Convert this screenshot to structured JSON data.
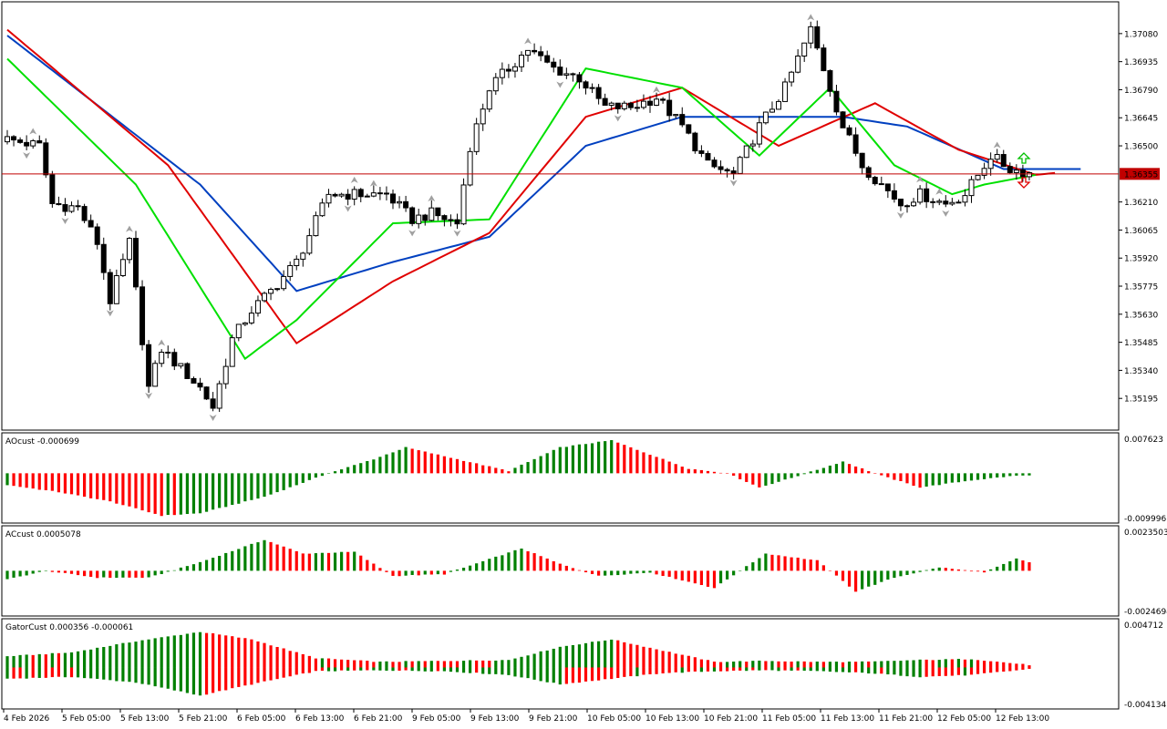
{
  "colors": {
    "bull": "#008000",
    "bear": "#ff0000",
    "jaw": "#0040c0",
    "teeth": "#e00000",
    "lips": "#00e000",
    "price_line": "#c00000",
    "price_tag_bg": "#c00000",
    "fractal": "#a0a0a0"
  },
  "main": {
    "ylim": [
      1.3505,
      1.3723
    ],
    "y_ticks": [
      "1.37080",
      "1.36935",
      "1.36790",
      "1.36645",
      "1.36500",
      "1.36355",
      "1.36210",
      "1.36065",
      "1.35920",
      "1.35775",
      "1.35630",
      "1.35485",
      "1.35340",
      "1.35195"
    ],
    "current_price": "1.36355"
  },
  "panels": {
    "ao": {
      "title": "AOcust -0.000699",
      "max_label": "0.007623",
      "min_label": "-0.009996"
    },
    "ac": {
      "title": "ACcust 0.0005078",
      "max_label": "0.0023503",
      "min_label": "-0.0024694"
    },
    "gator": {
      "title": "GatorCust 0.000356 -0.000061",
      "max_label": "0.004712",
      "min_label": "-0.004134"
    }
  },
  "x_labels": [
    "4 Feb 2026",
    "5 Feb 05:00",
    "5 Feb 13:00",
    "5 Feb 21:00",
    "6 Feb 05:00",
    "6 Feb 13:00",
    "6 Feb 21:00",
    "9 Feb 05:00",
    "9 Feb 13:00",
    "9 Feb 21:00",
    "10 Feb 05:00",
    "10 Feb 13:00",
    "10 Feb 21:00",
    "11 Feb 05:00",
    "11 Feb 13:00",
    "11 Feb 21:00",
    "12 Feb 05:00",
    "12 Feb 13:00"
  ],
  "chart_data": [
    {
      "type": "candlestick",
      "title": "",
      "bar_count": 160,
      "close_anchors": [
        [
          0,
          1.3654
        ],
        [
          6,
          1.365
        ],
        [
          8,
          1.362
        ],
        [
          12,
          1.3618
        ],
        [
          15,
          1.36
        ],
        [
          17,
          1.357
        ],
        [
          20,
          1.36
        ],
        [
          23,
          1.3525
        ],
        [
          25,
          1.3545
        ],
        [
          28,
          1.3535
        ],
        [
          31,
          1.3525
        ],
        [
          33,
          1.3515
        ],
        [
          36,
          1.355
        ],
        [
          39,
          1.3565
        ],
        [
          42,
          1.3575
        ],
        [
          46,
          1.359
        ],
        [
          51,
          1.3625
        ],
        [
          56,
          1.3625
        ],
        [
          60,
          1.3625
        ],
        [
          64,
          1.3612
        ],
        [
          67,
          1.3615
        ],
        [
          71,
          1.361
        ],
        [
          73,
          1.365
        ],
        [
          76,
          1.368
        ],
        [
          79,
          1.369
        ],
        [
          82,
          1.37
        ],
        [
          86,
          1.369
        ],
        [
          90,
          1.3685
        ],
        [
          94,
          1.367
        ],
        [
          98,
          1.367
        ],
        [
          102,
          1.3675
        ],
        [
          106,
          1.366
        ],
        [
          110,
          1.364
        ],
        [
          114,
          1.3635
        ],
        [
          118,
          1.366
        ],
        [
          122,
          1.368
        ],
        [
          126,
          1.371
        ],
        [
          128,
          1.369
        ],
        [
          131,
          1.366
        ],
        [
          134,
          1.364
        ],
        [
          137,
          1.363
        ],
        [
          140,
          1.362
        ],
        [
          143,
          1.3625
        ],
        [
          147,
          1.362
        ],
        [
          150,
          1.3625
        ],
        [
          154,
          1.3645
        ],
        [
          157,
          1.3638
        ],
        [
          160,
          1.3636
        ]
      ],
      "alligator": {
        "jaw_anchors": [
          [
            0,
            1.3707
          ],
          [
            30,
            1.363
          ],
          [
            45,
            1.3575
          ],
          [
            60,
            1.359
          ],
          [
            75,
            1.3603
          ],
          [
            90,
            1.365
          ],
          [
            105,
            1.3665
          ],
          [
            120,
            1.3665
          ],
          [
            130,
            1.3665
          ],
          [
            140,
            1.366
          ],
          [
            155,
            1.3638
          ],
          [
            167,
            1.3638
          ]
        ],
        "teeth_anchors": [
          [
            0,
            1.371
          ],
          [
            25,
            1.364
          ],
          [
            45,
            1.3548
          ],
          [
            60,
            1.358
          ],
          [
            75,
            1.3605
          ],
          [
            90,
            1.3665
          ],
          [
            105,
            1.368
          ],
          [
            120,
            1.365
          ],
          [
            135,
            1.3672
          ],
          [
            148,
            1.3648
          ],
          [
            160,
            1.3635
          ],
          [
            163,
            1.3636
          ]
        ],
        "lips_anchors": [
          [
            0,
            1.3695
          ],
          [
            20,
            1.363
          ],
          [
            37,
            1.354
          ],
          [
            45,
            1.356
          ],
          [
            60,
            1.361
          ],
          [
            75,
            1.3612
          ],
          [
            90,
            1.369
          ],
          [
            105,
            1.368
          ],
          [
            117,
            1.3645
          ],
          [
            128,
            1.368
          ],
          [
            138,
            1.364
          ],
          [
            147,
            1.3625
          ],
          [
            152,
            1.363
          ],
          [
            160,
            1.3635
          ]
        ]
      }
    },
    {
      "type": "histogram",
      "name": "AOcust",
      "ylim": [
        -0.009996,
        0.007623
      ],
      "anchors": [
        [
          0,
          -0.0025
        ],
        [
          8,
          -0.004
        ],
        [
          16,
          -0.006
        ],
        [
          24,
          -0.009
        ],
        [
          30,
          -0.0085
        ],
        [
          40,
          -0.005
        ],
        [
          50,
          0.0
        ],
        [
          57,
          0.003
        ],
        [
          62,
          0.0055
        ],
        [
          70,
          0.003
        ],
        [
          78,
          0.0005
        ],
        [
          86,
          0.0055
        ],
        [
          94,
          0.007
        ],
        [
          100,
          0.004
        ],
        [
          106,
          0.001
        ],
        [
          112,
          0.0
        ],
        [
          117,
          -0.003
        ],
        [
          122,
          -0.001
        ],
        [
          130,
          0.0025
        ],
        [
          136,
          -0.0005
        ],
        [
          142,
          -0.003
        ],
        [
          150,
          -0.0015
        ],
        [
          157,
          -0.0005
        ],
        [
          160,
          -0.0005
        ]
      ]
    },
    {
      "type": "histogram",
      "name": "ACcust",
      "ylim": [
        -0.0024694,
        0.0023503
      ],
      "anchors": [
        [
          0,
          -0.0005
        ],
        [
          6,
          0.0
        ],
        [
          14,
          -0.0004
        ],
        [
          22,
          -0.0004
        ],
        [
          30,
          0.0005
        ],
        [
          40,
          0.0018
        ],
        [
          46,
          0.001
        ],
        [
          54,
          0.0011
        ],
        [
          60,
          -0.0003
        ],
        [
          68,
          -0.0002
        ],
        [
          76,
          0.0008
        ],
        [
          80,
          0.0013
        ],
        [
          86,
          0.0004
        ],
        [
          92,
          -0.0003
        ],
        [
          100,
          -0.0001
        ],
        [
          110,
          -0.001
        ],
        [
          118,
          0.001
        ],
        [
          126,
          0.0006
        ],
        [
          132,
          -0.0012
        ],
        [
          138,
          -0.0004
        ],
        [
          145,
          0.0002
        ],
        [
          152,
          -0.0001
        ],
        [
          157,
          0.0007
        ],
        [
          160,
          0.0004
        ]
      ]
    },
    {
      "type": "histogram",
      "name": "GatorCust",
      "ylim": [
        -0.004134,
        0.004712
      ],
      "upper_anchors": [
        [
          0,
          0.0012
        ],
        [
          10,
          0.0016
        ],
        [
          20,
          0.0028
        ],
        [
          30,
          0.0038
        ],
        [
          38,
          0.003
        ],
        [
          48,
          0.001
        ],
        [
          58,
          0.0006
        ],
        [
          68,
          0.0007
        ],
        [
          78,
          0.0008
        ],
        [
          86,
          0.0022
        ],
        [
          94,
          0.003
        ],
        [
          102,
          0.0018
        ],
        [
          110,
          0.0006
        ],
        [
          118,
          0.0007
        ],
        [
          126,
          0.0006
        ],
        [
          134,
          0.0006
        ],
        [
          142,
          0.0008
        ],
        [
          150,
          0.0009
        ],
        [
          160,
          0.0002
        ]
      ],
      "lower_anchors": [
        [
          0,
          -0.0012
        ],
        [
          10,
          -0.001
        ],
        [
          20,
          -0.0016
        ],
        [
          30,
          -0.003
        ],
        [
          38,
          -0.0018
        ],
        [
          48,
          -0.0004
        ],
        [
          58,
          -0.0003
        ],
        [
          68,
          -0.0004
        ],
        [
          78,
          -0.0008
        ],
        [
          86,
          -0.0018
        ],
        [
          94,
          -0.0012
        ],
        [
          102,
          -0.0006
        ],
        [
          110,
          -0.0004
        ],
        [
          118,
          -0.0003
        ],
        [
          126,
          -0.0004
        ],
        [
          134,
          -0.0006
        ],
        [
          142,
          -0.001
        ],
        [
          150,
          -0.0008
        ],
        [
          160,
          -0.0001
        ]
      ]
    }
  ]
}
